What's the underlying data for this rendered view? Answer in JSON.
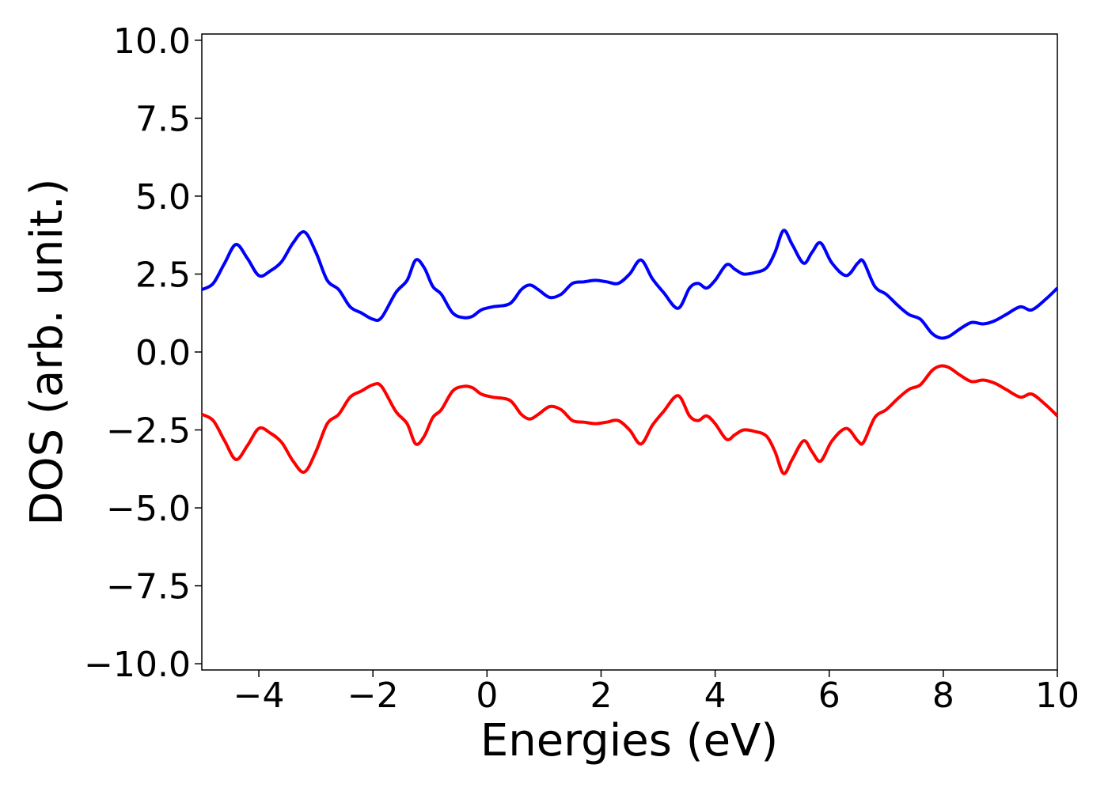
{
  "chart_data": {
    "type": "line",
    "title": "",
    "xlabel": "Energies (eV)",
    "ylabel": "DOS (arb. unit.)",
    "xlim": [
      -5,
      10
    ],
    "ylim": [
      -10.2,
      10.2
    ],
    "xticks": [
      -4,
      -2,
      0,
      2,
      4,
      6,
      8,
      10
    ],
    "xtick_labels": [
      "−4",
      "−2",
      "0",
      "2",
      "4",
      "6",
      "8",
      "10"
    ],
    "yticks": [
      -10,
      -7.5,
      -5,
      -2.5,
      0,
      2.5,
      5,
      7.5,
      10
    ],
    "ytick_labels": [
      "−10.0",
      "−7.5",
      "−5.0",
      "−2.5",
      "0.0",
      "2.5",
      "5.0",
      "7.5",
      "10.0"
    ],
    "grid": false,
    "legend": "none",
    "series": [
      {
        "color": "#0000ff",
        "x": [
          -5.0,
          -4.8,
          -4.6,
          -4.4,
          -4.2,
          -4.0,
          -3.8,
          -3.6,
          -3.4,
          -3.2,
          -3.0,
          -2.8,
          -2.6,
          -2.4,
          -2.2,
          -2.0,
          -1.85,
          -1.6,
          -1.4,
          -1.25,
          -1.1,
          -0.95,
          -0.8,
          -0.6,
          -0.4,
          -0.25,
          -0.1,
          0.1,
          0.4,
          0.6,
          0.75,
          0.9,
          1.1,
          1.3,
          1.5,
          1.7,
          1.9,
          2.1,
          2.3,
          2.5,
          2.7,
          2.9,
          3.1,
          3.35,
          3.55,
          3.7,
          3.85,
          4.0,
          4.2,
          4.35,
          4.5,
          4.7,
          4.9,
          5.05,
          5.2,
          5.35,
          5.55,
          5.7,
          5.85,
          6.05,
          6.3,
          6.5,
          6.6,
          6.8,
          7.0,
          7.2,
          7.4,
          7.6,
          7.8,
          7.95,
          8.1,
          8.3,
          8.5,
          8.7,
          8.9,
          9.1,
          9.35,
          9.55,
          9.8,
          10.0
        ],
        "values": [
          2.0,
          2.2,
          2.85,
          3.45,
          3.0,
          2.45,
          2.6,
          2.9,
          3.5,
          3.85,
          3.2,
          2.3,
          2.0,
          1.45,
          1.25,
          1.05,
          1.1,
          1.9,
          2.3,
          2.95,
          2.7,
          2.1,
          1.85,
          1.25,
          1.1,
          1.15,
          1.35,
          1.45,
          1.55,
          2.0,
          2.15,
          2.0,
          1.75,
          1.85,
          2.2,
          2.25,
          2.3,
          2.25,
          2.2,
          2.5,
          2.95,
          2.35,
          1.9,
          1.4,
          2.05,
          2.2,
          2.05,
          2.3,
          2.8,
          2.65,
          2.5,
          2.55,
          2.7,
          3.2,
          3.9,
          3.45,
          2.85,
          3.2,
          3.5,
          2.85,
          2.45,
          2.85,
          2.9,
          2.1,
          1.85,
          1.5,
          1.2,
          1.05,
          0.6,
          0.45,
          0.5,
          0.75,
          0.95,
          0.9,
          1.0,
          1.2,
          1.45,
          1.35,
          1.7,
          2.05
        ]
      },
      {
        "color": "#ff0000",
        "x": [
          -5.0,
          -4.8,
          -4.6,
          -4.4,
          -4.2,
          -4.0,
          -3.8,
          -3.6,
          -3.4,
          -3.2,
          -3.0,
          -2.8,
          -2.6,
          -2.4,
          -2.2,
          -2.0,
          -1.85,
          -1.6,
          -1.4,
          -1.25,
          -1.1,
          -0.95,
          -0.8,
          -0.6,
          -0.4,
          -0.25,
          -0.1,
          0.1,
          0.4,
          0.6,
          0.75,
          0.9,
          1.1,
          1.3,
          1.5,
          1.7,
          1.9,
          2.1,
          2.3,
          2.5,
          2.7,
          2.9,
          3.1,
          3.35,
          3.55,
          3.7,
          3.85,
          4.0,
          4.2,
          4.35,
          4.5,
          4.7,
          4.9,
          5.05,
          5.2,
          5.35,
          5.55,
          5.7,
          5.85,
          6.05,
          6.3,
          6.5,
          6.6,
          6.8,
          7.0,
          7.2,
          7.4,
          7.6,
          7.8,
          7.95,
          8.1,
          8.3,
          8.5,
          8.7,
          8.9,
          9.1,
          9.35,
          9.55,
          9.8,
          10.0
        ],
        "values": [
          -2.0,
          -2.2,
          -2.85,
          -3.45,
          -3.0,
          -2.45,
          -2.6,
          -2.9,
          -3.5,
          -3.85,
          -3.2,
          -2.3,
          -2.0,
          -1.45,
          -1.25,
          -1.05,
          -1.1,
          -1.9,
          -2.3,
          -2.95,
          -2.7,
          -2.1,
          -1.85,
          -1.25,
          -1.1,
          -1.15,
          -1.35,
          -1.45,
          -1.55,
          -2.0,
          -2.15,
          -2.0,
          -1.75,
          -1.85,
          -2.2,
          -2.25,
          -2.3,
          -2.25,
          -2.2,
          -2.5,
          -2.95,
          -2.35,
          -1.9,
          -1.4,
          -2.05,
          -2.2,
          -2.05,
          -2.3,
          -2.8,
          -2.65,
          -2.5,
          -2.55,
          -2.7,
          -3.2,
          -3.9,
          -3.45,
          -2.85,
          -3.2,
          -3.5,
          -2.85,
          -2.45,
          -2.85,
          -2.9,
          -2.1,
          -1.85,
          -1.5,
          -1.2,
          -1.05,
          -0.6,
          -0.45,
          -0.5,
          -0.75,
          -0.95,
          -0.9,
          -1.0,
          -1.2,
          -1.45,
          -1.35,
          -1.7,
          -2.05
        ]
      }
    ]
  }
}
